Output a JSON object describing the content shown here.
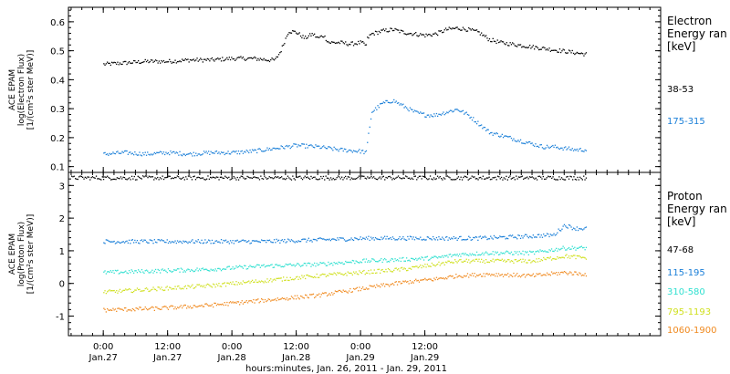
{
  "chart_data": [
    {
      "type": "scatter",
      "panel": "electron",
      "ylabel_lines": [
        "ACE EPAM",
        "log(Electron Flux)",
        "[1/(cm²s ster MeV)]"
      ],
      "ylim": [
        0.08,
        0.65
      ],
      "yticks": [
        0.1,
        0.2,
        0.3,
        0.4,
        0.5,
        0.6
      ],
      "ytick_labels": [
        "0.1",
        "0.2",
        "0.3",
        "0.4",
        "0.5",
        "0.6"
      ],
      "legend_title_lines": [
        "Electron",
        "Energy ran",
        "[keV]"
      ],
      "series": [
        {
          "name": "38-53",
          "color": "#000000",
          "x": [
            0,
            4,
            8,
            12,
            16,
            20,
            24,
            28,
            31,
            32,
            33,
            34.5,
            36,
            37.5,
            39,
            40,
            41,
            42,
            44,
            46,
            48,
            49,
            49.2,
            50,
            52,
            54,
            56,
            58,
            60,
            62,
            64,
            66,
            68,
            70,
            72,
            74,
            76,
            78,
            80,
            82,
            84,
            86,
            88,
            90
          ],
          "values": [
            0.455,
            0.46,
            0.465,
            0.465,
            0.47,
            0.47,
            0.475,
            0.475,
            0.47,
            0.47,
            0.5,
            0.57,
            0.565,
            0.545,
            0.56,
            0.545,
            0.555,
            0.53,
            0.53,
            0.525,
            0.53,
            0.52,
            0.545,
            0.56,
            0.57,
            0.575,
            0.565,
            0.56,
            0.555,
            0.56,
            0.575,
            0.58,
            0.575,
            0.565,
            0.54,
            0.53,
            0.525,
            0.52,
            0.515,
            0.51,
            0.505,
            0.5,
            0.495,
            0.49
          ]
        },
        {
          "name": "175-315",
          "color": "#1a7fd8",
          "x": [
            0,
            4,
            8,
            12,
            16,
            20,
            24,
            28,
            30,
            32,
            36,
            40,
            44,
            48,
            49,
            49.3,
            50,
            52,
            54,
            56,
            58,
            60,
            62,
            64,
            66,
            68,
            70,
            72,
            74,
            76,
            78,
            80,
            82,
            84,
            86,
            88,
            90
          ],
          "values": [
            0.145,
            0.15,
            0.145,
            0.15,
            0.145,
            0.15,
            0.15,
            0.155,
            0.16,
            0.165,
            0.175,
            0.17,
            0.16,
            0.155,
            0.15,
            0.2,
            0.29,
            0.32,
            0.33,
            0.31,
            0.29,
            0.28,
            0.28,
            0.29,
            0.3,
            0.28,
            0.25,
            0.22,
            0.21,
            0.2,
            0.19,
            0.18,
            0.17,
            0.17,
            0.165,
            0.16,
            0.16
          ]
        }
      ]
    },
    {
      "type": "scatter",
      "panel": "proton",
      "ylabel_lines": [
        "ACE EPAM",
        "log(Proton Flux)",
        "[1/(cm²s ster MeV)]"
      ],
      "ylim": [
        -1.6,
        3.4
      ],
      "yticks": [
        -1,
        0,
        1,
        2,
        3
      ],
      "ytick_labels": [
        "-1",
        "0",
        "1",
        "2",
        "3"
      ],
      "legend_title_lines": [
        "Proton",
        "Energy ran",
        "[keV]"
      ],
      "series": [
        {
          "name": "47-68",
          "color": "#000000",
          "x": [
            -6,
            0,
            10,
            20,
            30,
            40,
            50,
            60,
            70,
            80,
            90
          ],
          "values": [
            3.25,
            3.25,
            3.25,
            3.25,
            3.25,
            3.25,
            3.25,
            3.25,
            3.25,
            3.25,
            3.25
          ]
        },
        {
          "name": "115-195",
          "color": "#1a7fd8",
          "x": [
            0,
            10,
            20,
            30,
            40,
            50,
            60,
            70,
            78,
            84,
            86,
            88,
            90
          ],
          "values": [
            1.3,
            1.3,
            1.3,
            1.3,
            1.35,
            1.4,
            1.4,
            1.4,
            1.45,
            1.5,
            1.8,
            1.7,
            1.7
          ]
        },
        {
          "name": "310-580",
          "color": "#30e0d0",
          "x": [
            0,
            10,
            20,
            30,
            40,
            48,
            56,
            62,
            66,
            72,
            80,
            86,
            90
          ],
          "values": [
            0.35,
            0.4,
            0.45,
            0.55,
            0.6,
            0.7,
            0.75,
            0.8,
            0.9,
            0.95,
            0.95,
            1.1,
            1.1
          ]
        },
        {
          "name": "795-1193",
          "color": "#d0e020",
          "x": [
            0,
            10,
            20,
            30,
            40,
            48,
            56,
            62,
            66,
            72,
            80,
            86,
            90
          ],
          "values": [
            -0.25,
            -0.15,
            -0.05,
            0.1,
            0.25,
            0.35,
            0.45,
            0.6,
            0.7,
            0.7,
            0.7,
            0.85,
            0.8
          ]
        },
        {
          "name": "1060-1900",
          "color": "#f08a20",
          "x": [
            0,
            10,
            20,
            30,
            40,
            48,
            56,
            62,
            66,
            72,
            80,
            86,
            90
          ],
          "values": [
            -0.8,
            -0.75,
            -0.65,
            -0.5,
            -0.35,
            -0.15,
            0.05,
            0.15,
            0.25,
            0.3,
            0.25,
            0.35,
            0.3
          ]
        }
      ]
    }
  ],
  "xaxis": {
    "xlim": [
      -6.5,
      104
    ],
    "ticks": [
      {
        "x": 0,
        "line1": "0:00",
        "line2": "Jan.27"
      },
      {
        "x": 12,
        "line1": "12:00",
        "line2": "Jan.27"
      },
      {
        "x": 24,
        "line1": "0:00",
        "line2": "Jan.28"
      },
      {
        "x": 36,
        "line1": "12:00",
        "line2": "Jan.28"
      },
      {
        "x": 48,
        "line1": "0:00",
        "line2": "Jan.29"
      },
      {
        "x": 60,
        "line1": "12:00",
        "line2": "Jan.29"
      }
    ],
    "xlabel": "hours:minutes, Jan. 26, 2011 - Jan. 29, 2011"
  }
}
